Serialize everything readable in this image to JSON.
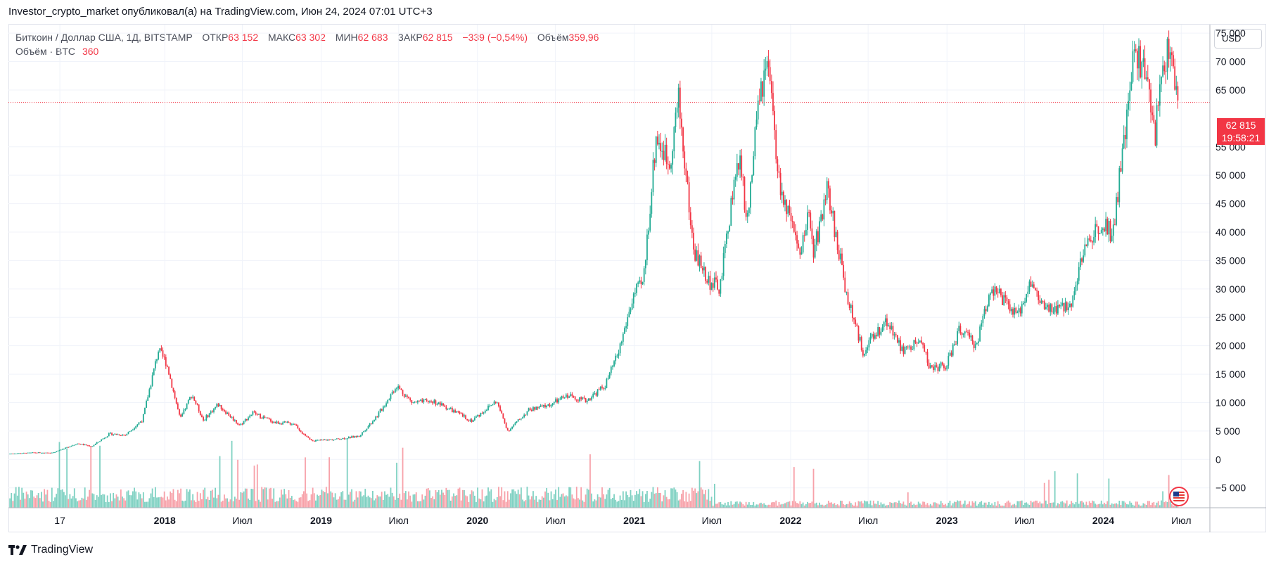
{
  "header": {
    "published": "Investor_crypto_market опубликовал(а) на TradingView.com, Июн 24, 2024 07:01 UTC+3"
  },
  "legend": {
    "symbol": "Биткоин / Доллар США, 1Д, BITSTAMP",
    "open_label": "ОТКР",
    "open_value": "63 152",
    "high_label": "МАКС",
    "high_value": "63 302",
    "low_label": "МИН",
    "low_value": "62 683",
    "close_label": "ЗАКР",
    "close_value": "62 815",
    "change": "−339 (−0,54%)",
    "volume_label": "Объём",
    "volume_value": "359,96",
    "volume_series_label": "Объём · BTC",
    "volume_series_value": "360"
  },
  "toolbar": {
    "currency": "USD"
  },
  "price_label": {
    "price": "62 815",
    "countdown": "19:58:21"
  },
  "brand": {
    "name": "TradingView"
  },
  "colors": {
    "up": "#22ab94",
    "down": "#f23645",
    "grid": "#f0f3fa",
    "price_line": "#f23645",
    "volume_up": "#7fd1c2",
    "volume_down": "#f7a1a9"
  },
  "chart_data": {
    "type": "candlestick",
    "symbol": "BTCUSD",
    "exchange": "BITSTAMP",
    "interval": "1D",
    "y_scale": "linear",
    "ylim": [
      -8500,
      76500
    ],
    "y_ticks": [
      75000,
      70000,
      65000,
      55000,
      50000,
      45000,
      40000,
      35000,
      30000,
      25000,
      20000,
      15000,
      10000,
      5000,
      0,
      -5000
    ],
    "y_tick_labels": [
      "75 000",
      "70 000",
      "65 000",
      "55 000",
      "50 000",
      "45 000",
      "40 000",
      "35 000",
      "30 000",
      "25 000",
      "20 000",
      "15 000",
      "10 000",
      "5 000",
      "0",
      "−5 000"
    ],
    "x_range": [
      "2017-01-01",
      "2024-08-04"
    ],
    "x_ticks": [
      {
        "date": "2017-05-01",
        "label": "17",
        "bold": false
      },
      {
        "date": "2018-01-01",
        "label": "2018",
        "bold": true
      },
      {
        "date": "2018-07-01",
        "label": "Июл",
        "bold": false
      },
      {
        "date": "2019-01-01",
        "label": "2019",
        "bold": true
      },
      {
        "date": "2019-07-01",
        "label": "Июл",
        "bold": false
      },
      {
        "date": "2020-01-01",
        "label": "2020",
        "bold": true
      },
      {
        "date": "2020-07-01",
        "label": "Июл",
        "bold": false
      },
      {
        "date": "2021-01-01",
        "label": "2021",
        "bold": true
      },
      {
        "date": "2021-07-01",
        "label": "Июл",
        "bold": false
      },
      {
        "date": "2022-01-01",
        "label": "2022",
        "bold": true
      },
      {
        "date": "2022-07-01",
        "label": "Июл",
        "bold": false
      },
      {
        "date": "2023-01-01",
        "label": "2023",
        "bold": true
      },
      {
        "date": "2023-07-01",
        "label": "Июл",
        "bold": false
      },
      {
        "date": "2024-01-01",
        "label": "2024",
        "bold": true
      },
      {
        "date": "2024-07-01",
        "label": "Июл",
        "bold": false
      }
    ],
    "last_price": 62815,
    "close_path": [
      [
        "2017-01-01",
        1000
      ],
      [
        "2017-03-01",
        1200
      ],
      [
        "2017-04-15",
        1200
      ],
      [
        "2017-06-10",
        2800
      ],
      [
        "2017-07-15",
        2300
      ],
      [
        "2017-08-25",
        4500
      ],
      [
        "2017-10-01",
        4300
      ],
      [
        "2017-11-10",
        7000
      ],
      [
        "2017-12-17",
        19200
      ],
      [
        "2018-01-05",
        17000
      ],
      [
        "2018-02-06",
        7000
      ],
      [
        "2018-03-05",
        11500
      ],
      [
        "2018-04-01",
        6900
      ],
      [
        "2018-05-05",
        9700
      ],
      [
        "2018-06-25",
        6000
      ],
      [
        "2018-07-25",
        8200
      ],
      [
        "2018-09-15",
        6500
      ],
      [
        "2018-10-31",
        6300
      ],
      [
        "2018-11-25",
        4000
      ],
      [
        "2018-12-15",
        3300
      ],
      [
        "2019-01-31",
        3500
      ],
      [
        "2019-03-31",
        4100
      ],
      [
        "2019-05-15",
        8000
      ],
      [
        "2019-06-26",
        13000
      ],
      [
        "2019-08-01",
        10000
      ],
      [
        "2019-09-20",
        10200
      ],
      [
        "2019-10-25",
        9000
      ],
      [
        "2019-12-18",
        6800
      ],
      [
        "2020-02-14",
        10300
      ],
      [
        "2020-03-12",
        5000
      ],
      [
        "2020-04-30",
        8700
      ],
      [
        "2020-06-15",
        9500
      ],
      [
        "2020-07-31",
        11300
      ],
      [
        "2020-09-10",
        10300
      ],
      [
        "2020-10-25",
        13000
      ],
      [
        "2020-11-25",
        18800
      ],
      [
        "2020-12-31",
        29000
      ],
      [
        "2021-01-22",
        31000
      ],
      [
        "2021-02-21",
        57000
      ],
      [
        "2021-03-24",
        52000
      ],
      [
        "2021-04-14",
        63500
      ],
      [
        "2021-05-19",
        37000
      ],
      [
        "2021-06-22",
        31500
      ],
      [
        "2021-07-20",
        30000
      ],
      [
        "2021-08-23",
        49500
      ],
      [
        "2021-09-07",
        52000
      ],
      [
        "2021-09-21",
        41000
      ],
      [
        "2021-10-20",
        64000
      ],
      [
        "2021-11-10",
        68500
      ],
      [
        "2021-12-04",
        49000
      ],
      [
        "2022-01-24",
        35000
      ],
      [
        "2022-02-10",
        44000
      ],
      [
        "2022-02-24",
        36500
      ],
      [
        "2022-03-28",
        47500
      ],
      [
        "2022-05-12",
        29000
      ],
      [
        "2022-06-18",
        19000
      ],
      [
        "2022-08-14",
        24500
      ],
      [
        "2022-09-20",
        19000
      ],
      [
        "2022-11-05",
        21000
      ],
      [
        "2022-11-21",
        16000
      ],
      [
        "2022-12-31",
        16500
      ],
      [
        "2023-01-31",
        23000
      ],
      [
        "2023-03-10",
        20000
      ],
      [
        "2023-04-14",
        30500
      ],
      [
        "2023-06-15",
        25000
      ],
      [
        "2023-07-13",
        31300
      ],
      [
        "2023-08-20",
        26000
      ],
      [
        "2023-10-15",
        27000
      ],
      [
        "2023-11-15",
        36500
      ],
      [
        "2023-12-31",
        42500
      ],
      [
        "2024-01-22",
        39500
      ],
      [
        "2024-02-29",
        62000
      ],
      [
        "2024-03-14",
        73000
      ],
      [
        "2024-04-20",
        64000
      ],
      [
        "2024-05-01",
        57000
      ],
      [
        "2024-05-21",
        71000
      ],
      [
        "2024-06-07",
        71500
      ],
      [
        "2024-06-23",
        62815
      ]
    ]
  }
}
